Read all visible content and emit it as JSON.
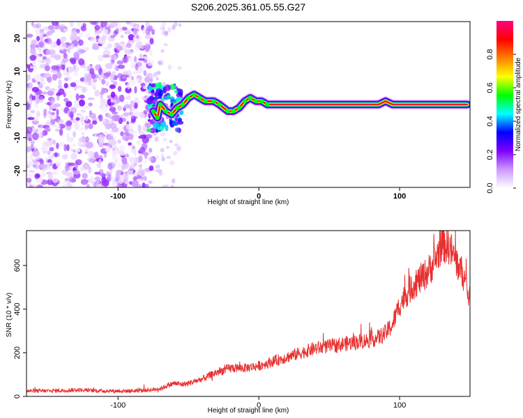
{
  "page_title": "S206.2025.361.05.55.G27",
  "chart_data": [
    {
      "type": "heatmap",
      "title": "S206.2025.361.05.55.G27",
      "xlabel": "Height of straight line (km)",
      "ylabel": "Frequency (Hz)",
      "xlim": [
        -165,
        150
      ],
      "ylim": [
        -25,
        25
      ],
      "x_ticks": [
        {
          "value": -100,
          "label": "-100"
        },
        {
          "value": 0,
          "label": "0"
        },
        {
          "value": 100,
          "label": "100"
        }
      ],
      "y_ticks": [
        {
          "value": -20,
          "label": "-20"
        },
        {
          "value": -10,
          "label": "-10"
        },
        {
          "value": 0,
          "label": "0"
        },
        {
          "value": 10,
          "label": "10"
        },
        {
          "value": 20,
          "label": "20"
        }
      ],
      "noise_region": {
        "x_start": -165,
        "x_end": -75,
        "amplitude_max": 0.2
      },
      "transition_region": {
        "x_start": -78,
        "x_end": -55,
        "amplitude_max": 0.4
      },
      "ridge_points": [
        {
          "x": -75,
          "y": -2
        },
        {
          "x": -72,
          "y": -4
        },
        {
          "x": -70,
          "y": 0
        },
        {
          "x": -66,
          "y": -2
        },
        {
          "x": -62,
          "y": -3
        },
        {
          "x": -58,
          "y": -1
        },
        {
          "x": -54,
          "y": 0
        },
        {
          "x": -50,
          "y": 2
        },
        {
          "x": -46,
          "y": 3
        },
        {
          "x": -42,
          "y": 2
        },
        {
          "x": -38,
          "y": 1
        },
        {
          "x": -32,
          "y": 1
        },
        {
          "x": -28,
          "y": 0
        },
        {
          "x": -22,
          "y": -2
        },
        {
          "x": -18,
          "y": -2
        },
        {
          "x": -14,
          "y": -1
        },
        {
          "x": -10,
          "y": 1
        },
        {
          "x": -6,
          "y": 2
        },
        {
          "x": -2,
          "y": 1
        },
        {
          "x": 2,
          "y": 1
        },
        {
          "x": 6,
          "y": 0
        },
        {
          "x": 20,
          "y": 0
        },
        {
          "x": 40,
          "y": 0
        },
        {
          "x": 60,
          "y": 0
        },
        {
          "x": 80,
          "y": 0
        },
        {
          "x": 85,
          "y": 0
        },
        {
          "x": 90,
          "y": 1
        },
        {
          "x": 95,
          "y": 0
        },
        {
          "x": 120,
          "y": 0
        },
        {
          "x": 148,
          "y": 0
        }
      ],
      "colorbar": {
        "label": "Normalized spectral amplitude",
        "range": [
          0,
          1
        ],
        "ticks": [
          {
            "value": 0.0,
            "label": "0.0"
          },
          {
            "value": 0.2,
            "label": "0.2"
          },
          {
            "value": 0.4,
            "label": "0.4"
          },
          {
            "value": 0.6,
            "label": "0.6"
          },
          {
            "value": 0.8,
            "label": "0.8"
          }
        ],
        "colors": [
          "#ffffff",
          "#cc99ff",
          "#8000ff",
          "#0000ff",
          "#00ffff",
          "#00ff00",
          "#ffff00",
          "#ff8000",
          "#ff0000",
          "#ff0080"
        ]
      }
    },
    {
      "type": "line",
      "xlabel": "Height of straight line (km)",
      "ylabel": "SNR (10 * v/v)",
      "xlim": [
        -165,
        150
      ],
      "ylim": [
        0,
        760
      ],
      "x_ticks": [
        {
          "value": -100,
          "label": "-100"
        },
        {
          "value": 0,
          "label": "0"
        },
        {
          "value": 100,
          "label": "100"
        }
      ],
      "y_ticks": [
        {
          "value": 0,
          "label": "0"
        },
        {
          "value": 200,
          "label": "200"
        },
        {
          "value": 400,
          "label": "400"
        },
        {
          "value": 600,
          "label": "600"
        }
      ],
      "series": [
        {
          "name": "SNR",
          "color": "#e83030",
          "x": [
            -165,
            -150,
            -130,
            -110,
            -90,
            -80,
            -70,
            -65,
            -60,
            -55,
            -50,
            -45,
            -40,
            -30,
            -20,
            -10,
            0,
            10,
            20,
            30,
            40,
            50,
            60,
            70,
            80,
            85,
            90,
            95,
            100,
            105,
            110,
            115,
            120,
            125,
            130,
            135,
            140,
            145,
            150
          ],
          "values": [
            25,
            25,
            30,
            25,
            25,
            28,
            35,
            50,
            60,
            55,
            60,
            70,
            80,
            110,
            130,
            130,
            140,
            160,
            180,
            200,
            220,
            230,
            240,
            250,
            260,
            270,
            290,
            330,
            420,
            470,
            510,
            540,
            570,
            620,
            700,
            690,
            620,
            560,
            440
          ]
        }
      ]
    }
  ]
}
